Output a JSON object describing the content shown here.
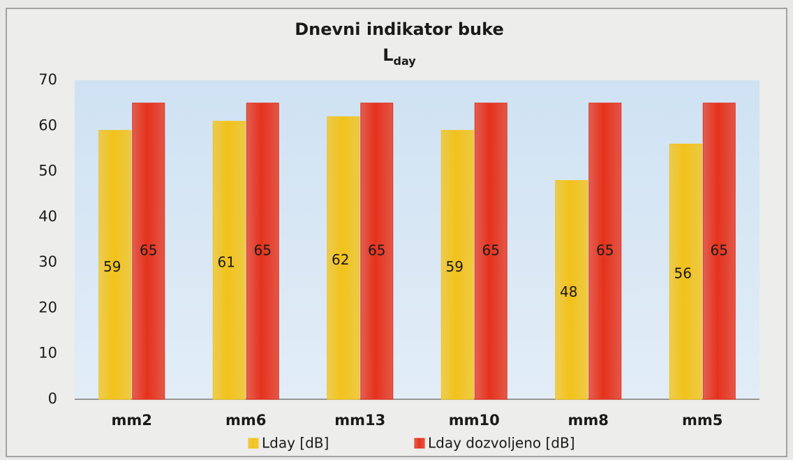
{
  "chart_data": {
    "type": "bar",
    "title": "Dnevni indikator buke",
    "subtitle": [
      "L",
      "day"
    ],
    "categories": [
      "mm2",
      "mm6",
      "mm13",
      "mm10",
      "mm8",
      "mm5"
    ],
    "series": [
      {
        "name": "Lday [dB]",
        "color": "#f2c21a",
        "values": [
          59,
          61,
          62,
          59,
          48,
          56
        ]
      },
      {
        "name": "Lday dozvoljeno [dB]",
        "color": "#e5321c",
        "values": [
          65,
          65,
          65,
          65,
          65,
          65
        ]
      }
    ],
    "ylim": [
      0,
      70
    ],
    "yticks": [
      0,
      10,
      20,
      30,
      40,
      50,
      60,
      70
    ],
    "grid": false,
    "legend": "bottom"
  }
}
